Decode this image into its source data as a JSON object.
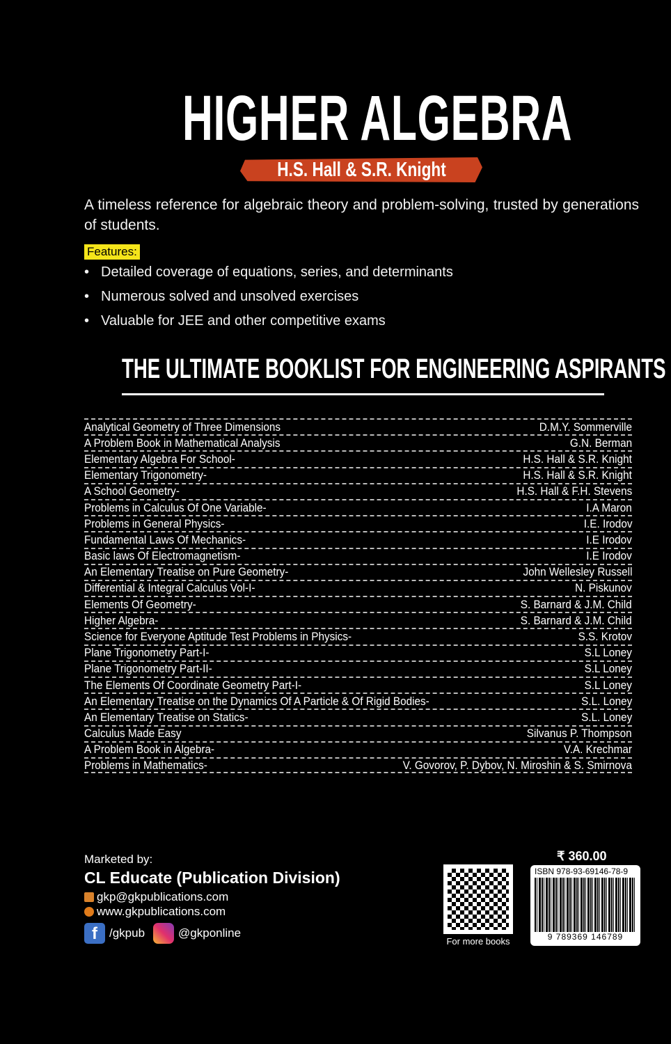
{
  "title": "HIGHER ALGEBRA",
  "author": "H.S. Hall & S.R. Knight",
  "description": "A timeless reference for algebraic theory and problem-solving, trusted by generations of students.",
  "features_label": "Features:",
  "features": [
    "Detailed coverage of equations, series, and determinants",
    "Numerous solved and unsolved exercises",
    "Valuable for JEE and other competitive exams"
  ],
  "booklist_title": "THE ULTIMATE BOOKLIST FOR ENGINEERING ASPIRANTS",
  "books": [
    {
      "title": "Analytical Geometry of Three Dimensions",
      "author": "D.M.Y. Sommerville"
    },
    {
      "title": "A Problem Book in Mathematical Analysis",
      "author": "G.N. Berman"
    },
    {
      "title": "Elementary Algebra For School-",
      "author": "H.S. Hall & S.R. Knight"
    },
    {
      "title": "Elementary Trigonometry-",
      "author": "H.S. Hall & S.R. Knight"
    },
    {
      "title": "A School Geometry-",
      "author": "H.S. Hall & F.H. Stevens"
    },
    {
      "title": "Problems in Calculus Of One Variable-",
      "author": "I.A Maron"
    },
    {
      "title": "Problems in General Physics-",
      "author": "I.E. Irodov"
    },
    {
      "title": "Fundamental Laws Of Mechanics-",
      "author": "I.E Irodov"
    },
    {
      "title": "Basic laws Of Electromagnetism-",
      "author": "I.E Irodov"
    },
    {
      "title": "An Elementary Treatise on Pure Geometry-",
      "author": "John Wellesley Russell"
    },
    {
      "title": "Differential & Integral Calculus Vol-I-",
      "author": "N. Piskunov"
    },
    {
      "title": "Elements Of Geometry-",
      "author": "S. Barnard & J.M. Child"
    },
    {
      "title": "Higher Algebra-",
      "author": "S. Barnard & J.M. Child"
    },
    {
      "title": "Science for Everyone Aptitude Test Problems in Physics-",
      "author": "S.S. Krotov"
    },
    {
      "title": "Plane Trigonometry Part-I-",
      "author": "S.L Loney"
    },
    {
      "title": "Plane Trigonometry Part-II-",
      "author": "S.L Loney"
    },
    {
      "title": "The Elements Of Coordinate Geometry Part-I-",
      "author": "S.L Loney"
    },
    {
      "title": "An Elementary Treatise on the Dynamics Of A Particle & Of Rigid Bodies-",
      "author": "S.L. Loney"
    },
    {
      "title": "An Elementary Treatise on Statics-",
      "author": "S.L. Loney"
    },
    {
      "title": "Calculus Made Easy",
      "author": "Silvanus P. Thompson"
    },
    {
      "title": "A Problem Book in Algebra-",
      "author": "V.A. Krechmar"
    },
    {
      "title": "Problems in Mathematics-",
      "author": "V. Govorov, P. Dybov, N. Miroshin & S. Smirnova"
    }
  ],
  "marketed_label": "Marketed by:",
  "company": "CL Educate (Publication Division)",
  "email": "gkp@gkpublications.com",
  "website": "www.gkpublications.com",
  "facebook": "/gkpub",
  "instagram": "@gkponline",
  "qr_label": "For more books",
  "price": "₹ 360.00",
  "isbn": "ISBN 978-93-69146-78-9",
  "isbn_digits": "9 789369 146789",
  "colors": {
    "background": "#000000",
    "banner": "#c9421f",
    "features_highlight": "#f5e51a"
  }
}
